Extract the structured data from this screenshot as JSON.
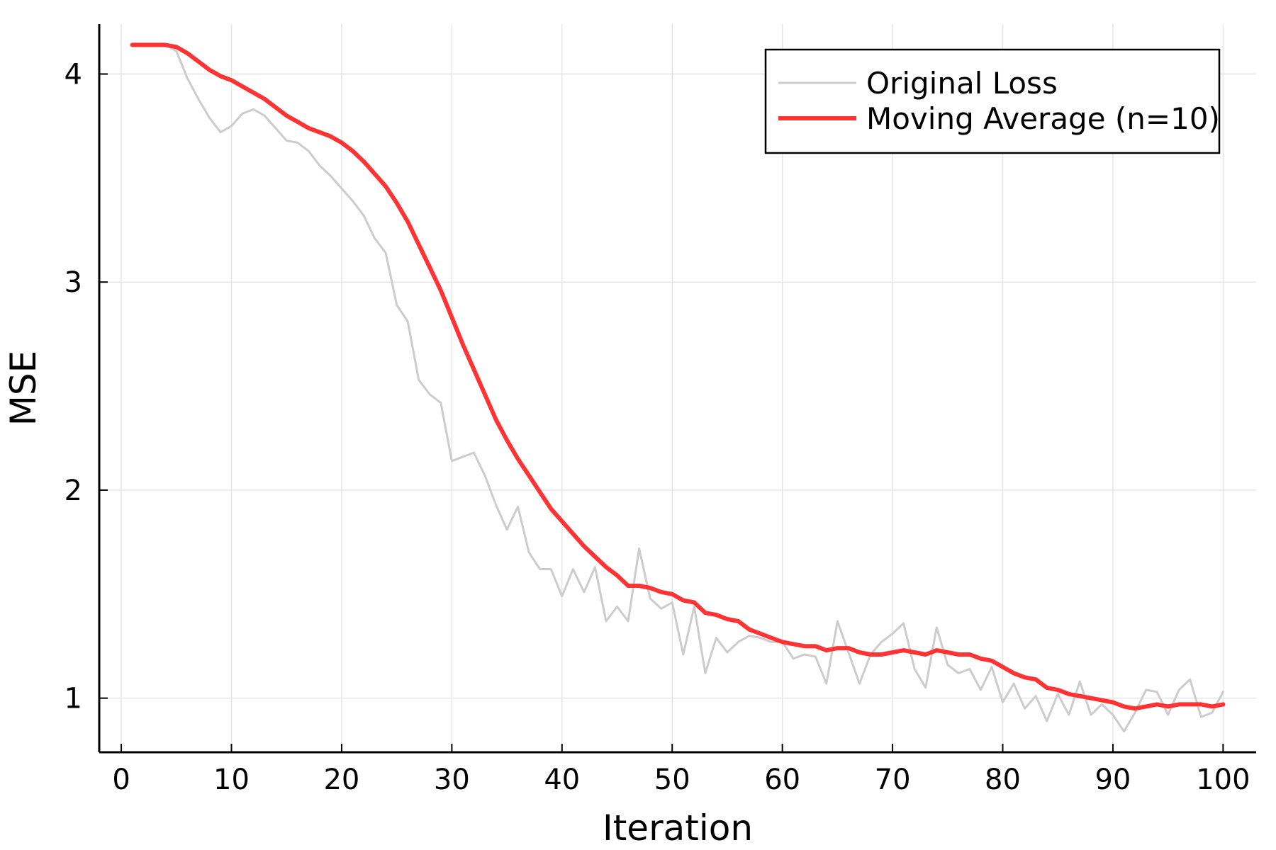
{
  "chart_data": {
    "type": "line",
    "xlabel": "Iteration",
    "ylabel": "MSE",
    "xlim": [
      -2,
      103
    ],
    "ylim": [
      0.74,
      4.24
    ],
    "xticks": [
      0,
      10,
      20,
      30,
      40,
      50,
      60,
      70,
      80,
      90,
      100
    ],
    "yticks": [
      1,
      2,
      3,
      4
    ],
    "grid": true,
    "legend_position": "top-right",
    "x": [
      1,
      2,
      3,
      4,
      5,
      6,
      7,
      8,
      9,
      10,
      11,
      12,
      13,
      14,
      15,
      16,
      17,
      18,
      19,
      20,
      21,
      22,
      23,
      24,
      25,
      26,
      27,
      28,
      29,
      30,
      31,
      32,
      33,
      34,
      35,
      36,
      37,
      38,
      39,
      40,
      41,
      42,
      43,
      44,
      45,
      46,
      47,
      48,
      49,
      50,
      51,
      52,
      53,
      54,
      55,
      56,
      57,
      58,
      59,
      60,
      61,
      62,
      63,
      64,
      65,
      66,
      67,
      68,
      69,
      70,
      71,
      72,
      73,
      74,
      75,
      76,
      77,
      78,
      79,
      80,
      81,
      82,
      83,
      84,
      85,
      86,
      87,
      88,
      89,
      90,
      91,
      92,
      93,
      94,
      95,
      96,
      97,
      98,
      99,
      100
    ],
    "series": [
      {
        "name": "Original Loss",
        "color": "#cccccc",
        "values": [
          4.14,
          4.14,
          4.14,
          4.14,
          4.11,
          3.98,
          3.88,
          3.79,
          3.72,
          3.75,
          3.81,
          3.83,
          3.8,
          3.74,
          3.68,
          3.67,
          3.63,
          3.56,
          3.51,
          3.45,
          3.39,
          3.32,
          3.21,
          3.14,
          2.89,
          2.81,
          2.53,
          2.46,
          2.42,
          2.14,
          2.16,
          2.18,
          2.07,
          1.93,
          1.81,
          1.92,
          1.7,
          1.62,
          1.62,
          1.49,
          1.62,
          1.51,
          1.63,
          1.37,
          1.44,
          1.37,
          1.72,
          1.48,
          1.43,
          1.46,
          1.21,
          1.44,
          1.12,
          1.29,
          1.22,
          1.27,
          1.3,
          1.29,
          1.27,
          1.27,
          1.19,
          1.21,
          1.2,
          1.07,
          1.37,
          1.22,
          1.07,
          1.21,
          1.27,
          1.31,
          1.36,
          1.14,
          1.05,
          1.34,
          1.16,
          1.12,
          1.14,
          1.04,
          1.15,
          0.98,
          1.07,
          0.95,
          1.01,
          0.89,
          1.02,
          0.92,
          1.08,
          0.92,
          0.97,
          0.92,
          0.84,
          0.93,
          1.04,
          1.03,
          0.92,
          1.04,
          1.09,
          0.91,
          0.93,
          1.03
        ]
      },
      {
        "name": "Moving Average (n=10)",
        "color": "#ff3333",
        "values": [
          4.14,
          4.14,
          4.14,
          4.14,
          4.13,
          4.1,
          4.06,
          4.02,
          3.99,
          3.97,
          3.94,
          3.91,
          3.88,
          3.84,
          3.8,
          3.77,
          3.74,
          3.72,
          3.7,
          3.67,
          3.63,
          3.58,
          3.52,
          3.46,
          3.38,
          3.29,
          3.18,
          3.07,
          2.96,
          2.83,
          2.7,
          2.58,
          2.46,
          2.34,
          2.24,
          2.15,
          2.07,
          1.99,
          1.91,
          1.85,
          1.79,
          1.73,
          1.68,
          1.63,
          1.59,
          1.54,
          1.54,
          1.53,
          1.51,
          1.5,
          1.47,
          1.46,
          1.41,
          1.4,
          1.38,
          1.37,
          1.33,
          1.31,
          1.29,
          1.27,
          1.26,
          1.25,
          1.25,
          1.23,
          1.24,
          1.24,
          1.22,
          1.21,
          1.21,
          1.22,
          1.23,
          1.22,
          1.21,
          1.23,
          1.22,
          1.21,
          1.21,
          1.19,
          1.18,
          1.15,
          1.12,
          1.1,
          1.09,
          1.05,
          1.04,
          1.02,
          1.01,
          1.0,
          0.99,
          0.98,
          0.96,
          0.95,
          0.96,
          0.97,
          0.96,
          0.97,
          0.97,
          0.97,
          0.96,
          0.97
        ]
      }
    ]
  }
}
